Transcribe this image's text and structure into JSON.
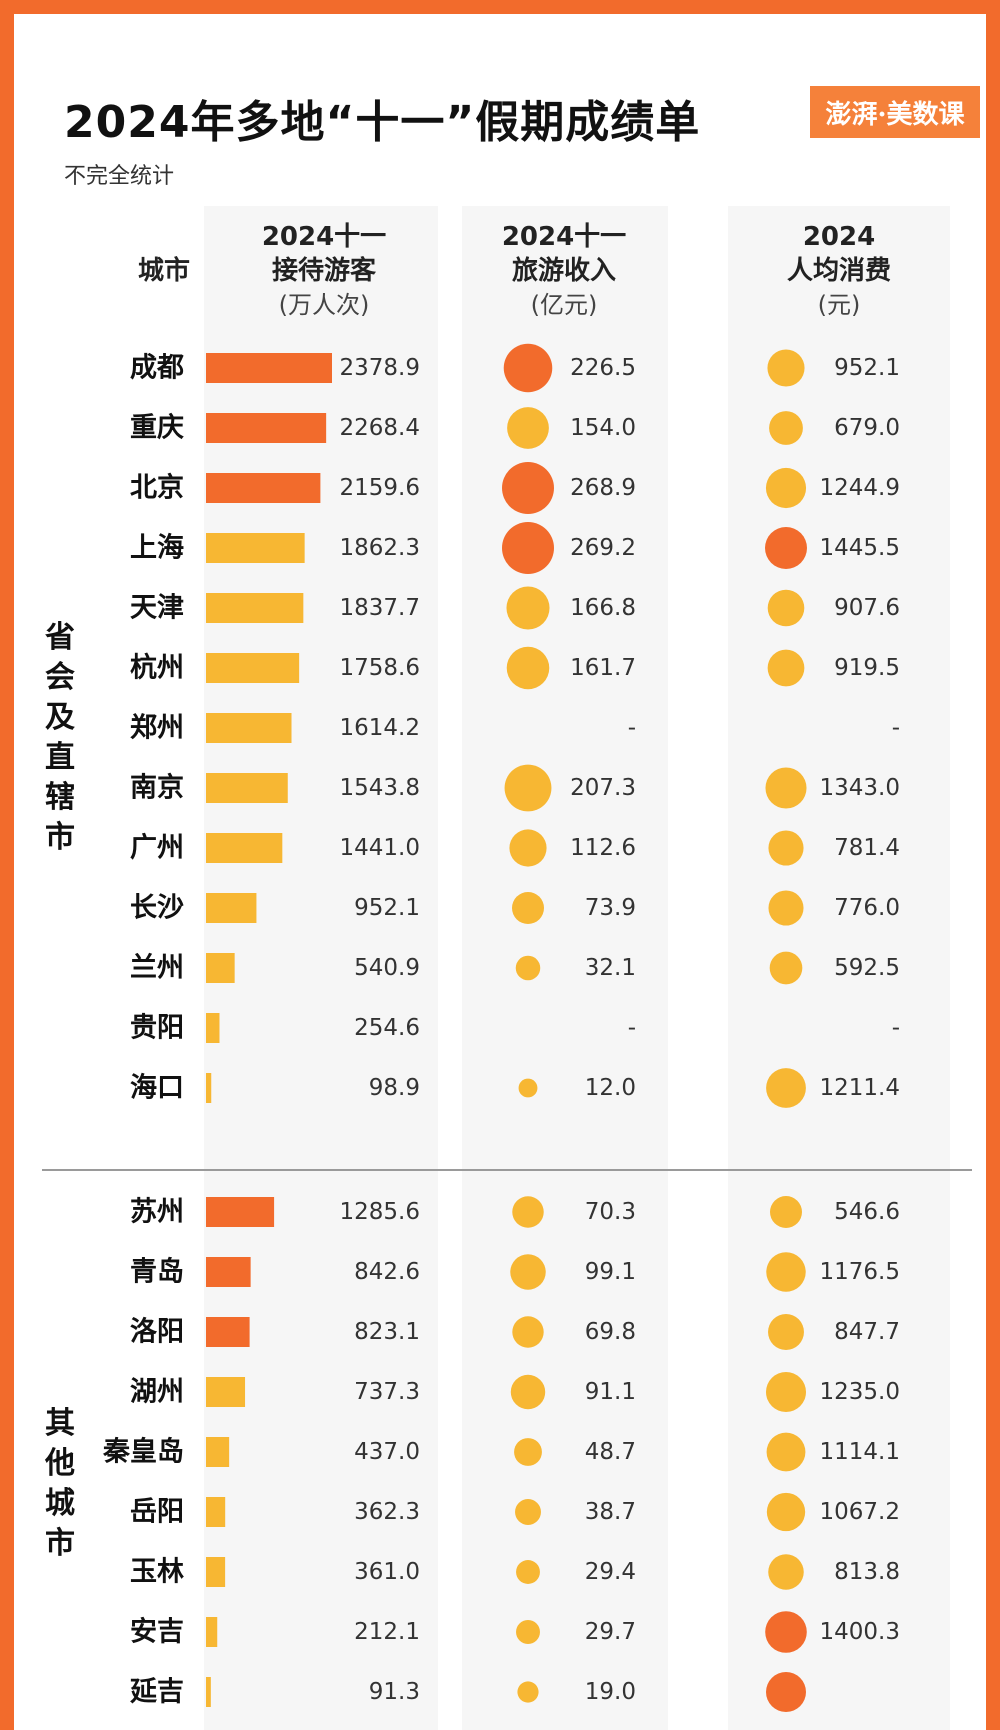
{
  "title": "2024年多地“十一”假期成绩单",
  "subtitle": "不完全统计",
  "brand": "澎湃·美数课",
  "headers": {
    "city": "城市",
    "visitors": {
      "line1": "2024十一",
      "line2": "接待游客",
      "unit": "(万人次)"
    },
    "revenue": {
      "line1": "2024十一",
      "line2": "旅游收入",
      "unit": "(亿元)"
    },
    "per_capita": {
      "line1": "2024",
      "line2": "人均消费",
      "unit": "(元)"
    }
  },
  "groups": [
    "省会及直辖市",
    "其他城市"
  ],
  "colors": {
    "high": "#f26b2c",
    "mid": "#f7b733",
    "accent": "#f26b2c"
  },
  "chart_data": {
    "type": "table",
    "columns": [
      "城市",
      "接待游客(万人次)",
      "旅游收入(亿元)",
      "人均消费(元)"
    ],
    "rows": [
      {
        "group": 0,
        "city": "成都",
        "visitors": 2378.9,
        "revenue": 226.5,
        "per_capita": 952.1,
        "vis_hi": true,
        "rev_hi": true,
        "pc_hi": false
      },
      {
        "group": 0,
        "city": "重庆",
        "visitors": 2268.4,
        "revenue": 154.0,
        "per_capita": 679.0,
        "vis_hi": true,
        "rev_hi": false,
        "pc_hi": false
      },
      {
        "group": 0,
        "city": "北京",
        "visitors": 2159.6,
        "revenue": 268.9,
        "per_capita": 1244.9,
        "vis_hi": true,
        "rev_hi": true,
        "pc_hi": false
      },
      {
        "group": 0,
        "city": "上海",
        "visitors": 1862.3,
        "revenue": 269.2,
        "per_capita": 1445.5,
        "vis_hi": false,
        "rev_hi": true,
        "pc_hi": true
      },
      {
        "group": 0,
        "city": "天津",
        "visitors": 1837.7,
        "revenue": 166.8,
        "per_capita": 907.6,
        "vis_hi": false,
        "rev_hi": false,
        "pc_hi": false
      },
      {
        "group": 0,
        "city": "杭州",
        "visitors": 1758.6,
        "revenue": 161.7,
        "per_capita": 919.5,
        "vis_hi": false,
        "rev_hi": false,
        "pc_hi": false
      },
      {
        "group": 0,
        "city": "郑州",
        "visitors": 1614.2,
        "revenue": null,
        "per_capita": null,
        "vis_hi": false,
        "rev_hi": false,
        "pc_hi": false
      },
      {
        "group": 0,
        "city": "南京",
        "visitors": 1543.8,
        "revenue": 207.3,
        "per_capita": 1343.0,
        "vis_hi": false,
        "rev_hi": false,
        "pc_hi": false
      },
      {
        "group": 0,
        "city": "广州",
        "visitors": 1441.0,
        "revenue": 112.6,
        "per_capita": 781.4,
        "vis_hi": false,
        "rev_hi": false,
        "pc_hi": false
      },
      {
        "group": 0,
        "city": "长沙",
        "visitors": 952.1,
        "revenue": 73.9,
        "per_capita": 776.0,
        "vis_hi": false,
        "rev_hi": false,
        "pc_hi": false
      },
      {
        "group": 0,
        "city": "兰州",
        "visitors": 540.9,
        "revenue": 32.1,
        "per_capita": 592.5,
        "vis_hi": false,
        "rev_hi": false,
        "pc_hi": false
      },
      {
        "group": 0,
        "city": "贵阳",
        "visitors": 254.6,
        "revenue": null,
        "per_capita": null,
        "vis_hi": false,
        "rev_hi": false,
        "pc_hi": false
      },
      {
        "group": 0,
        "city": "海口",
        "visitors": 98.9,
        "revenue": 12.0,
        "per_capita": 1211.4,
        "vis_hi": false,
        "rev_hi": false,
        "pc_hi": false
      },
      {
        "group": 1,
        "city": "苏州",
        "visitors": 1285.6,
        "revenue": 70.3,
        "per_capita": 546.6,
        "vis_hi": true,
        "rev_hi": false,
        "pc_hi": false
      },
      {
        "group": 1,
        "city": "青岛",
        "visitors": 842.6,
        "revenue": 99.1,
        "per_capita": 1176.5,
        "vis_hi": true,
        "rev_hi": false,
        "pc_hi": false
      },
      {
        "group": 1,
        "city": "洛阳",
        "visitors": 823.1,
        "revenue": 69.8,
        "per_capita": 847.7,
        "vis_hi": true,
        "rev_hi": false,
        "pc_hi": false
      },
      {
        "group": 1,
        "city": "湖州",
        "visitors": 737.3,
        "revenue": 91.1,
        "per_capita": 1235.0,
        "vis_hi": false,
        "rev_hi": false,
        "pc_hi": false
      },
      {
        "group": 1,
        "city": "秦皇岛",
        "visitors": 437.0,
        "revenue": 48.7,
        "per_capita": 1114.1,
        "vis_hi": false,
        "rev_hi": false,
        "pc_hi": false
      },
      {
        "group": 1,
        "city": "岳阳",
        "visitors": 362.3,
        "revenue": 38.7,
        "per_capita": 1067.2,
        "vis_hi": false,
        "rev_hi": false,
        "pc_hi": false
      },
      {
        "group": 1,
        "city": "玉林",
        "visitors": 361.0,
        "revenue": 29.4,
        "per_capita": 813.8,
        "vis_hi": false,
        "rev_hi": false,
        "pc_hi": false
      },
      {
        "group": 1,
        "city": "安吉",
        "visitors": 212.1,
        "revenue": 29.7,
        "per_capita": 1400.3,
        "vis_hi": false,
        "rev_hi": false,
        "pc_hi": true
      },
      {
        "group": 1,
        "city": "延吉",
        "visitors": 91.3,
        "revenue": 19.0,
        "per_capita": null,
        "vis_hi": false,
        "rev_hi": false,
        "pc_hi": true
      }
    ]
  }
}
